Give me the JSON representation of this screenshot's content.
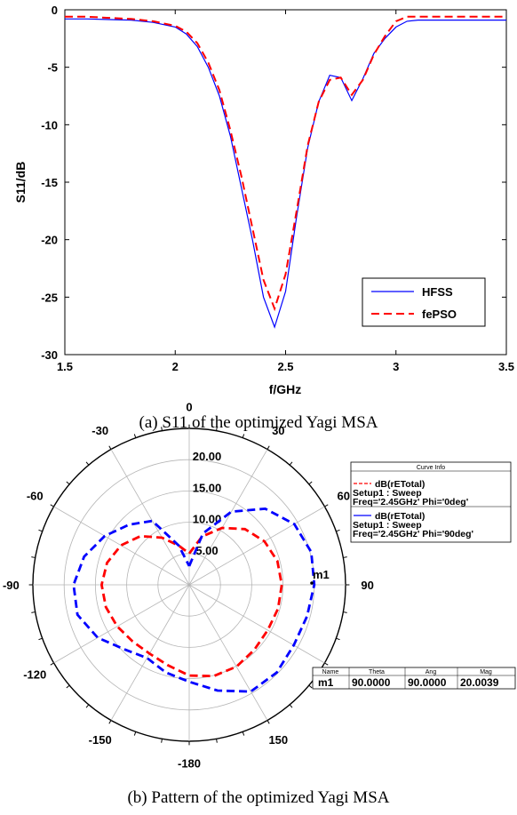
{
  "chart_data": [
    {
      "type": "line",
      "caption": "(a) S11 of the optimized Yagi MSA",
      "xlabel": "f/GHz",
      "ylabel": "S11/dB",
      "xlim": [
        1.5,
        3.5
      ],
      "ylim": [
        -30,
        0
      ],
      "x_ticks": [
        "1.5",
        "2",
        "2.5",
        "3",
        "3.5"
      ],
      "y_ticks": [
        "0",
        "-5",
        "-10",
        "-15",
        "-20",
        "-25",
        "-30"
      ],
      "grid": false,
      "legend_position": "bottom-right",
      "series": [
        {
          "name": "HFSS",
          "color": "#0000ff",
          "style": "solid",
          "x": [
            1.5,
            1.6,
            1.7,
            1.8,
            1.9,
            2.0,
            2.05,
            2.1,
            2.15,
            2.2,
            2.25,
            2.3,
            2.35,
            2.4,
            2.45,
            2.5,
            2.55,
            2.6,
            2.65,
            2.7,
            2.75,
            2.8,
            2.85,
            2.9,
            2.95,
            3.0,
            3.05,
            3.1,
            3.2,
            3.3,
            3.4,
            3.5
          ],
          "y": [
            -0.8,
            -0.8,
            -0.85,
            -0.9,
            -1.1,
            -1.5,
            -2.1,
            -3.2,
            -5.0,
            -7.5,
            -11.0,
            -15.5,
            -20.0,
            -25.0,
            -27.6,
            -24.5,
            -18.0,
            -12.0,
            -8.0,
            -5.7,
            -5.9,
            -7.9,
            -6.0,
            -3.8,
            -2.5,
            -1.5,
            -1.0,
            -0.9,
            -0.9,
            -0.9,
            -0.9,
            -0.9
          ]
        },
        {
          "name": "fePSO",
          "color": "#ff0000",
          "style": "dashed",
          "x": [
            1.5,
            1.6,
            1.7,
            1.8,
            1.9,
            2.0,
            2.05,
            2.1,
            2.15,
            2.2,
            2.25,
            2.3,
            2.35,
            2.4,
            2.45,
            2.5,
            2.55,
            2.6,
            2.65,
            2.7,
            2.75,
            2.8,
            2.85,
            2.9,
            2.95,
            3.0,
            3.05,
            3.1,
            3.2,
            3.3,
            3.4,
            3.5
          ],
          "y": [
            -0.6,
            -0.6,
            -0.7,
            -0.8,
            -1.0,
            -1.4,
            -1.9,
            -2.9,
            -4.6,
            -7.0,
            -10.5,
            -14.5,
            -19.0,
            -23.5,
            -26.0,
            -23.0,
            -17.5,
            -11.8,
            -8.0,
            -6.1,
            -5.9,
            -7.4,
            -6.1,
            -3.9,
            -2.3,
            -1.0,
            -0.6,
            -0.6,
            -0.6,
            -0.6,
            -0.6,
            -0.6
          ]
        }
      ]
    },
    {
      "type": "polar",
      "caption": "(b) Pattern of the optimized Yagi MSA",
      "angle_ticks": [
        "0",
        "30",
        "60",
        "90",
        "120",
        "150",
        "-180",
        "-150",
        "-120",
        "-90",
        "-60",
        "-30"
      ],
      "radial_ticks": [
        "5.00",
        "10.00",
        "15.00",
        "20.00"
      ],
      "radial_range": [
        0,
        25
      ],
      "grid": true,
      "curve_info": {
        "title": "Curve Info",
        "entries": [
          {
            "line1": "dB(rETotal)",
            "line2": "Setup1 : Sweep",
            "line3": "Freq='2.45GHz' Phi='0deg'",
            "color": "#ff0000",
            "style": "dashed"
          },
          {
            "line1": "dB(rETotal)",
            "line2": "Setup1 : Sweep",
            "line3": "Freq='2.45GHz' Phi='90deg'",
            "color": "#0000ff",
            "style": "dashed"
          }
        ]
      },
      "marker": {
        "label": "m1",
        "headers": [
          "Name",
          "Theta",
          "Ang",
          "Mag"
        ],
        "values": [
          "m1",
          "90.0000",
          "90.0000",
          "20.0039"
        ]
      },
      "series": [
        {
          "name": "Phi='0deg'",
          "color": "#ff0000",
          "theta": [
            0,
            15,
            30,
            45,
            60,
            75,
            90,
            105,
            120,
            135,
            150,
            165,
            180,
            195,
            210,
            225,
            240,
            255,
            270,
            285,
            300,
            315,
            330,
            345,
            360
          ],
          "r": [
            5,
            8,
            10.5,
            12.6,
            13.9,
            14.6,
            14.8,
            14.7,
            14.5,
            14.7,
            15.1,
            15.1,
            14.5,
            13.3,
            12.7,
            12.8,
            13.3,
            13.8,
            14,
            13.6,
            12.6,
            11,
            8.7,
            6.5,
            5
          ]
        },
        {
          "name": "Phi='90deg'",
          "color": "#0000ff",
          "theta": [
            0,
            15,
            30,
            45,
            60,
            75,
            90,
            105,
            120,
            135,
            150,
            165,
            180,
            195,
            210,
            225,
            240,
            255,
            270,
            285,
            300,
            315,
            330,
            345,
            360
          ],
          "r": [
            3,
            8.5,
            13.5,
            17.2,
            19.4,
            20.2,
            20,
            19.5,
            19.3,
            19.8,
            19.7,
            17.5,
            15.5,
            14.5,
            13.5,
            14.6,
            16.9,
            18.5,
            18.5,
            17.4,
            15.6,
            13.6,
            11.8,
            6.5,
            3
          ]
        }
      ]
    }
  ]
}
